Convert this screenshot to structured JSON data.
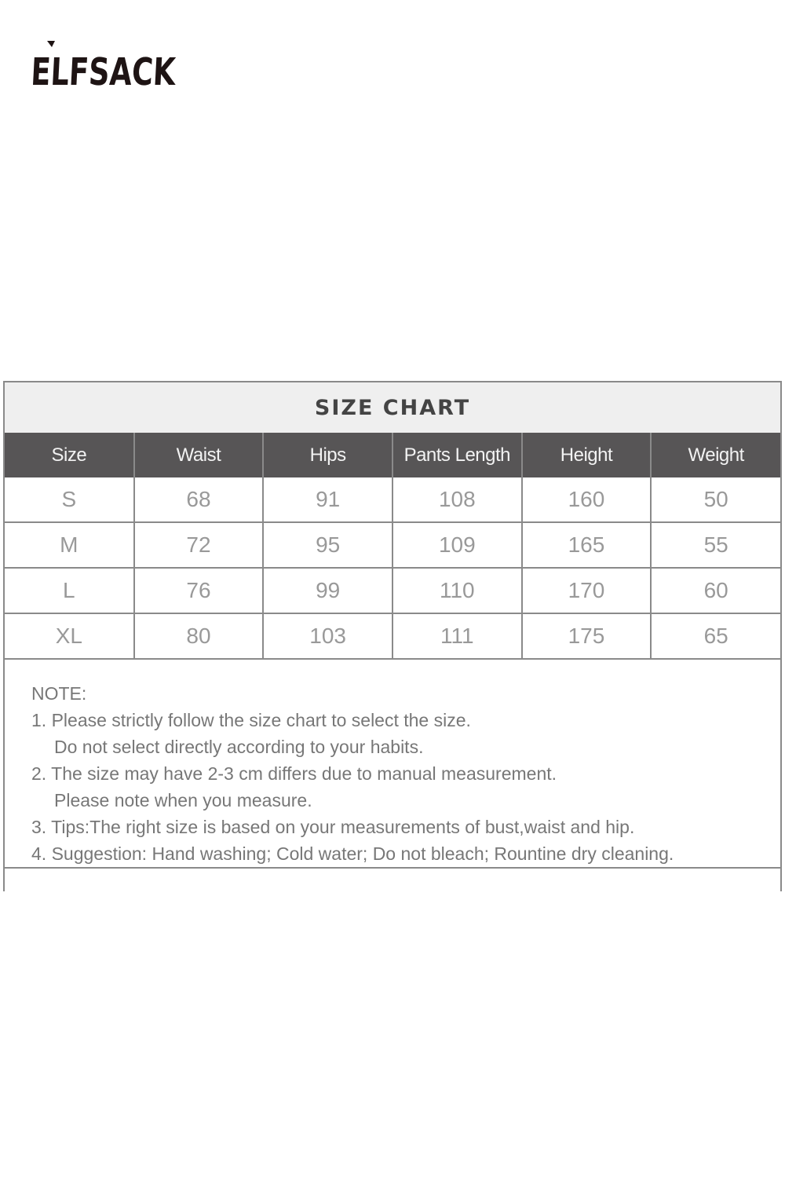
{
  "brand": {
    "logo_text": "ELFSACK"
  },
  "size_chart": {
    "title": "SIZE CHART",
    "headers": [
      "Size",
      "Waist",
      "Hips",
      "Pants Length",
      "Height",
      "Weight"
    ],
    "rows": [
      [
        "S",
        "68",
        "91",
        "108",
        "160",
        "50"
      ],
      [
        "M",
        "72",
        "95",
        "109",
        "165",
        "55"
      ],
      [
        "L",
        "76",
        "99",
        "110",
        "170",
        "60"
      ],
      [
        "XL",
        "80",
        "103",
        "111",
        "175",
        "65"
      ]
    ]
  },
  "notes": {
    "heading": "NOTE:",
    "lines": [
      "1. Please strictly follow the size chart to select the size.",
      "Do not select directly according to your habits.",
      "2. The size may have 2-3 cm differs due to manual measurement.",
      "Please note when you measure.",
      "3. Tips:The right size is based on your measurements of bust,waist and hip.",
      "4. Suggestion: Hand washing; Cold water; Do not bleach; Rountine dry cleaning."
    ]
  }
}
